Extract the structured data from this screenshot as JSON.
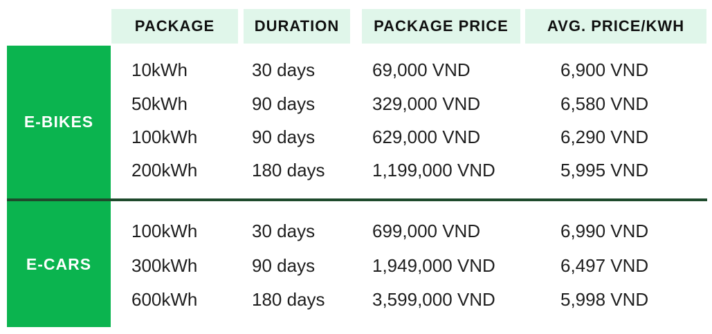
{
  "colors": {
    "brand_green": "#0bb44f",
    "header_mint": "#e0f6ea",
    "divider_dark_green": "#1e4a2c",
    "header_text": "#101010",
    "body_text": "#1e1e1e",
    "group_label_text": "#ffffff"
  },
  "table": {
    "columns": [
      "PACKAGE",
      "DURATION",
      "PACKAGE PRICE",
      "AVG. PRICE/KWH"
    ],
    "groups": [
      {
        "label": "E-BIKES",
        "rows": [
          {
            "package": "10kWh",
            "duration": "30 days",
            "price": "69,000 VND",
            "avg": "6,900 VND"
          },
          {
            "package": "50kWh",
            "duration": "90 days",
            "price": "329,000 VND",
            "avg": "6,580 VND"
          },
          {
            "package": "100kWh",
            "duration": "90 days",
            "price": "629,000 VND",
            "avg": "6,290 VND"
          },
          {
            "package": "200kWh",
            "duration": "180 days",
            "price": "1,199,000 VND",
            "avg": "5,995 VND"
          }
        ]
      },
      {
        "label": "E-CARS",
        "rows": [
          {
            "package": "100kWh",
            "duration": "30 days",
            "price": "699,000 VND",
            "avg": "6,990 VND"
          },
          {
            "package": "300kWh",
            "duration": "90 days",
            "price": "1,949,000 VND",
            "avg": "6,497 VND"
          },
          {
            "package": "600kWh",
            "duration": "180 days",
            "price": "3,599,000 VND",
            "avg": "5,998 VND"
          }
        ]
      }
    ]
  },
  "chart_data": {
    "type": "table",
    "title": "",
    "columns": [
      "GROUP",
      "PACKAGE",
      "DURATION",
      "PACKAGE PRICE",
      "AVG. PRICE/KWH"
    ],
    "rows": [
      [
        "E-BIKES",
        "10kWh",
        "30 days",
        "69,000 VND",
        "6,900 VND"
      ],
      [
        "E-BIKES",
        "50kWh",
        "90 days",
        "329,000 VND",
        "6,580 VND"
      ],
      [
        "E-BIKES",
        "100kWh",
        "90 days",
        "629,000 VND",
        "6,290 VND"
      ],
      [
        "E-BIKES",
        "200kWh",
        "180 days",
        "1,199,000 VND",
        "5,995 VND"
      ],
      [
        "E-CARS",
        "100kWh",
        "30 days",
        "699,000 VND",
        "6,990 VND"
      ],
      [
        "E-CARS",
        "300kWh",
        "90 days",
        "1,949,000 VND",
        "6,497 VND"
      ],
      [
        "E-CARS",
        "600kWh",
        "180 days",
        "3,599,000 VND",
        "5,998 VND"
      ]
    ]
  }
}
